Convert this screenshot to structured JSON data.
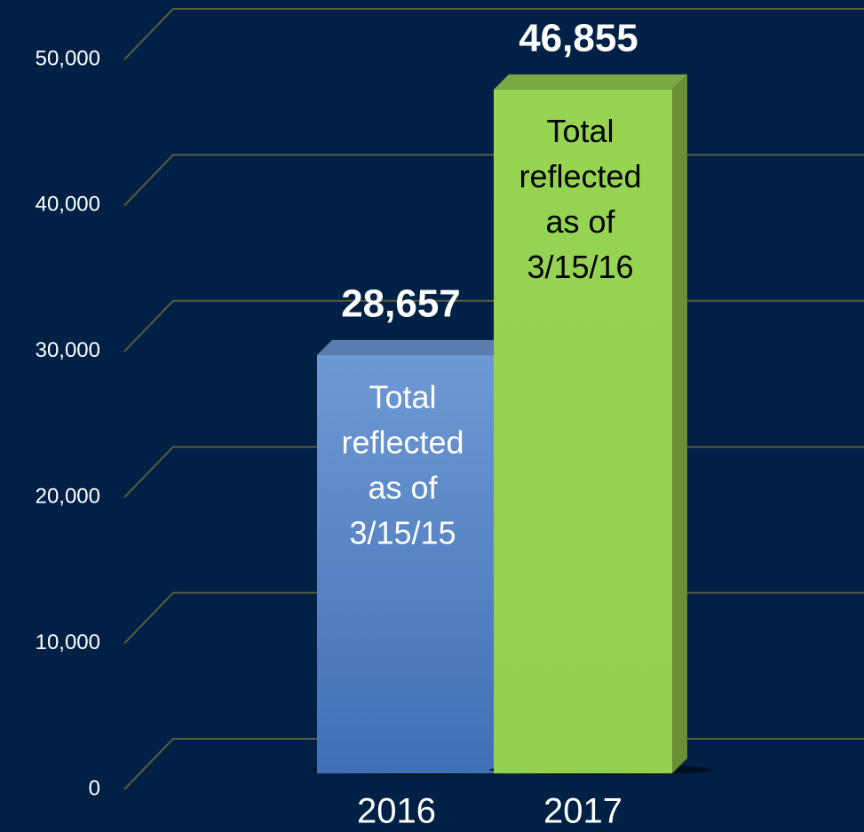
{
  "chart_data": {
    "type": "bar3d",
    "categories": [
      "2016",
      "2017"
    ],
    "values": [
      28657,
      46855
    ],
    "value_labels": [
      "28,657",
      "46,855"
    ],
    "annotations": [
      [
        "Total",
        "reflected",
        "as of",
        "3/15/15"
      ],
      [
        "Total",
        "reflected",
        "as of",
        "3/15/16"
      ]
    ],
    "colors": [
      "#5a8ad0",
      "#92d050"
    ],
    "annotation_colors": [
      "#ffffff",
      "#000000"
    ],
    "ylim": [
      0,
      50000
    ],
    "yticks": [
      0,
      {
        "value": 10000,
        "label": "10,000"
      },
      {
        "value": 20000,
        "label": "20,000"
      },
      {
        "value": 30000,
        "label": "30,000"
      },
      {
        "value": 40000,
        "label": "40,000"
      },
      {
        "value": 50000,
        "label": "50,000"
      }
    ],
    "grid": true
  }
}
